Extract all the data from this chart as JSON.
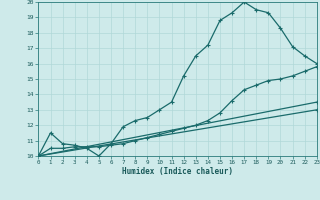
{
  "title": "",
  "xlabel": "Humidex (Indice chaleur)",
  "xlim": [
    0,
    23
  ],
  "ylim": [
    10,
    20
  ],
  "xticks": [
    0,
    1,
    2,
    3,
    4,
    5,
    6,
    7,
    8,
    9,
    10,
    11,
    12,
    13,
    14,
    15,
    16,
    17,
    18,
    19,
    20,
    21,
    22,
    23
  ],
  "yticks": [
    10,
    11,
    12,
    13,
    14,
    15,
    16,
    17,
    18,
    19,
    20
  ],
  "bg_color": "#ceeaea",
  "line_color": "#1a6b6b",
  "grid_color": "#b0d8d8",
  "lines": [
    {
      "x": [
        0,
        1,
        2,
        3,
        4,
        5,
        6,
        7,
        8,
        9,
        10,
        11,
        12,
        13,
        14,
        15,
        16,
        17,
        18,
        19,
        20,
        21,
        22,
        23
      ],
      "y": [
        10.0,
        11.5,
        10.8,
        10.7,
        10.5,
        10.0,
        10.8,
        11.9,
        12.3,
        12.5,
        13.0,
        13.5,
        15.2,
        16.5,
        17.2,
        18.8,
        19.3,
        20.0,
        19.5,
        19.3,
        18.3,
        17.1,
        16.5,
        16.0
      ]
    },
    {
      "x": [
        0,
        1,
        2,
        3,
        4,
        5,
        6,
        7,
        8,
        9,
        10,
        11,
        12,
        13,
        14,
        15,
        16,
        17,
        18,
        19,
        20,
        21,
        22,
        23
      ],
      "y": [
        10.0,
        10.5,
        10.5,
        10.6,
        10.6,
        10.6,
        10.7,
        10.8,
        11.0,
        11.2,
        11.4,
        11.6,
        11.8,
        12.0,
        12.3,
        12.8,
        13.6,
        14.3,
        14.6,
        14.9,
        15.0,
        15.2,
        15.5,
        15.8
      ]
    },
    {
      "x": [
        0,
        23
      ],
      "y": [
        10.0,
        13.0
      ]
    },
    {
      "x": [
        0,
        23
      ],
      "y": [
        10.0,
        13.5
      ]
    }
  ]
}
